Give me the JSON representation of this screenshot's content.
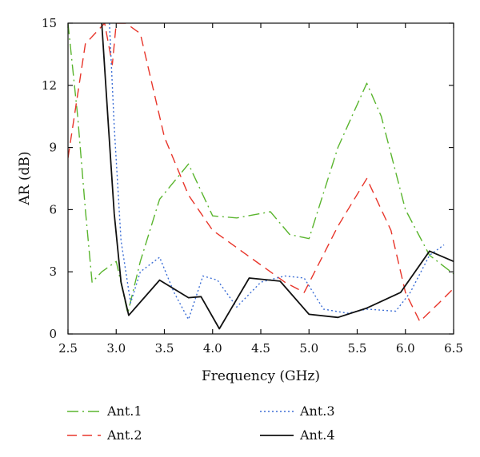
{
  "chart_data": {
    "type": "line",
    "xlabel": "Frequency (GHz)",
    "ylabel": "AR (dB)",
    "xlim": [
      2.5,
      6.5
    ],
    "ylim": [
      0,
      15
    ],
    "x_ticks": [
      "2.5",
      "3.0",
      "3.5",
      "4.0",
      "4.5",
      "5.0",
      "5.5",
      "6.0",
      "6.5"
    ],
    "y_ticks": [
      "0",
      "3",
      "6",
      "9",
      "12",
      "15"
    ],
    "grid": false,
    "legend_position": "bottom",
    "series": [
      {
        "name": "Ant.1",
        "color": "#5ab52e",
        "dash": "dash-dot",
        "x": [
          2.5,
          2.6,
          2.68,
          2.75,
          2.85,
          3.0,
          3.12,
          3.25,
          3.45,
          3.75,
          4.0,
          4.25,
          4.6,
          4.8,
          5.0,
          5.3,
          5.6,
          5.75,
          6.0,
          6.25,
          6.5
        ],
        "y": [
          15.0,
          10.5,
          6.0,
          2.5,
          3.0,
          3.5,
          1.0,
          3.5,
          6.5,
          8.2,
          5.7,
          5.6,
          5.9,
          4.8,
          4.6,
          9.0,
          12.1,
          10.5,
          6.0,
          3.8,
          2.9
        ]
      },
      {
        "name": "Ant.2",
        "color": "#e8352a",
        "dash": "dash",
        "x": [
          2.5,
          2.68,
          2.88,
          2.96,
          3.0,
          3.1,
          3.25,
          3.5,
          3.75,
          4.0,
          4.3,
          4.6,
          4.75,
          4.95,
          5.3,
          5.6,
          5.85,
          6.0,
          6.15,
          6.35,
          6.5
        ],
        "y": [
          8.5,
          14.0,
          15.0,
          13.0,
          15.0,
          15.0,
          14.5,
          9.5,
          6.7,
          5.0,
          4.0,
          3.0,
          2.5,
          2.0,
          5.2,
          7.5,
          5.0,
          2.0,
          0.6,
          1.5,
          2.2
        ]
      },
      {
        "name": "Ant.3",
        "color": "#3d6fd6",
        "dash": "dot",
        "x": [
          2.93,
          2.98,
          3.05,
          3.15,
          3.25,
          3.45,
          3.6,
          3.75,
          3.9,
          4.05,
          4.25,
          4.5,
          4.75,
          4.95,
          5.15,
          5.4,
          5.6,
          5.9,
          6.05,
          6.25,
          6.4
        ],
        "y": [
          15.0,
          10.0,
          4.5,
          1.5,
          3.0,
          3.7,
          2.0,
          0.7,
          2.8,
          2.6,
          1.3,
          2.5,
          2.8,
          2.7,
          1.2,
          1.0,
          1.2,
          1.1,
          2.0,
          3.8,
          4.3
        ]
      },
      {
        "name": "Ant.4",
        "color": "#111111",
        "dash": "solid",
        "x": [
          2.85,
          2.92,
          2.98,
          3.05,
          3.13,
          3.45,
          3.75,
          3.88,
          4.07,
          4.38,
          4.7,
          5.0,
          5.3,
          5.6,
          5.95,
          6.25,
          6.5
        ],
        "y": [
          15.0,
          10.0,
          5.8,
          2.5,
          0.9,
          2.6,
          1.75,
          1.8,
          0.25,
          2.7,
          2.55,
          0.95,
          0.8,
          1.25,
          2.0,
          4.0,
          3.5
        ]
      }
    ]
  }
}
